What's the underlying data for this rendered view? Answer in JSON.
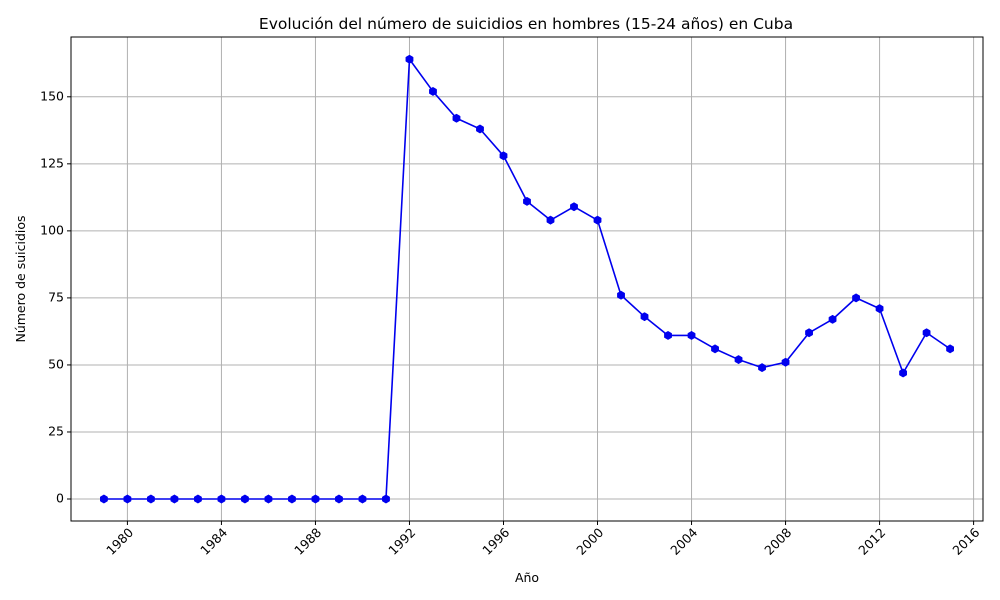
{
  "chart_data": {
    "type": "line",
    "title": "Evolución del número de suicidios en hombres (15-24 años) en Cuba",
    "xlabel": "Año",
    "ylabel": "Número de suicidios",
    "xlim": [
      1977.6,
      2016.4
    ],
    "ylim": [
      -8.2,
      172.3
    ],
    "x_ticks": [
      1980,
      1984,
      1988,
      1992,
      1996,
      2000,
      2004,
      2008,
      2012,
      2016
    ],
    "y_ticks": [
      0,
      25,
      50,
      75,
      100,
      125,
      150
    ],
    "grid": true,
    "color": "#0000ee",
    "marker": "hexagon",
    "x": [
      1979,
      1980,
      1981,
      1982,
      1983,
      1984,
      1985,
      1986,
      1987,
      1988,
      1989,
      1990,
      1991,
      1992,
      1993,
      1994,
      1995,
      1996,
      1997,
      1998,
      1999,
      2000,
      2001,
      2002,
      2003,
      2004,
      2005,
      2006,
      2007,
      2008,
      2009,
      2010,
      2011,
      2012,
      2013,
      2014,
      2015
    ],
    "values": [
      0,
      0,
      0,
      0,
      0,
      0,
      0,
      0,
      0,
      0,
      0,
      0,
      0,
      164,
      152,
      142,
      138,
      128,
      111,
      104,
      109,
      104,
      76,
      68,
      61,
      61,
      56,
      52,
      49,
      51,
      62,
      67,
      75,
      71,
      47,
      62,
      56
    ]
  }
}
